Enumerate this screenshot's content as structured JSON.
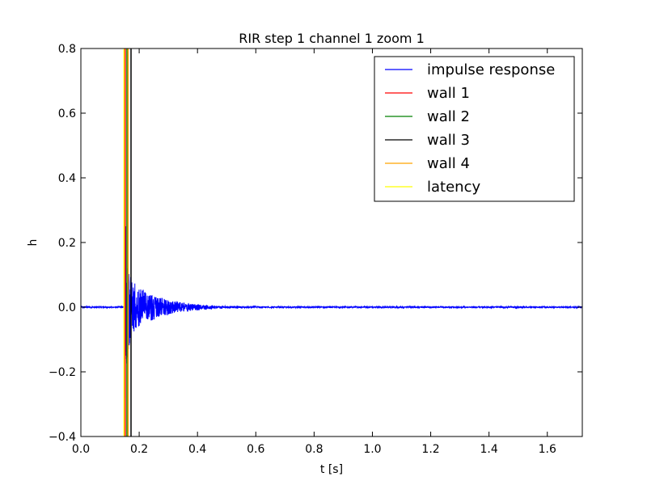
{
  "chart_data": {
    "type": "line",
    "title": "RIR step 1 channel 1 zoom 1",
    "xlabel": "t [s]",
    "ylabel": "h",
    "xlim": [
      0.0,
      1.72
    ],
    "ylim": [
      -0.4,
      0.8
    ],
    "xticks": [
      0.0,
      0.2,
      0.4,
      0.6,
      0.8,
      1.0,
      1.2,
      1.4,
      1.6
    ],
    "yticks": [
      -0.4,
      -0.2,
      0.0,
      0.2,
      0.4,
      0.6,
      0.8
    ],
    "xtick_labels": [
      "0.0",
      "0.2",
      "0.4",
      "0.6",
      "0.8",
      "1.0",
      "1.2",
      "1.4",
      "1.6"
    ],
    "ytick_labels": [
      "−0.4",
      "−0.2",
      "0.0",
      "0.2",
      "0.4",
      "0.6",
      "0.8"
    ],
    "grid": false,
    "legend_position": "top-right",
    "series": [
      {
        "name": "impulse response",
        "kind": "signal",
        "color": "#0000ff",
        "onset": 0.148,
        "peak_max": 0.67,
        "peak_min": -0.28,
        "decay_end": 0.6,
        "noise": 0.002,
        "x_end": 1.72
      },
      {
        "name": "wall 1",
        "kind": "vline",
        "color": "#ff0000",
        "x": 0.152
      },
      {
        "name": "wall 2",
        "kind": "vline",
        "color": "#008000",
        "x": 0.158
      },
      {
        "name": "wall 3",
        "kind": "vline",
        "color": "#000000",
        "x": 0.172
      },
      {
        "name": "wall 4",
        "kind": "vline",
        "color": "#ffa500",
        "x": 0.162
      },
      {
        "name": "latency",
        "kind": "vline",
        "color": "#ffff00",
        "x": 0.148
      }
    ]
  }
}
